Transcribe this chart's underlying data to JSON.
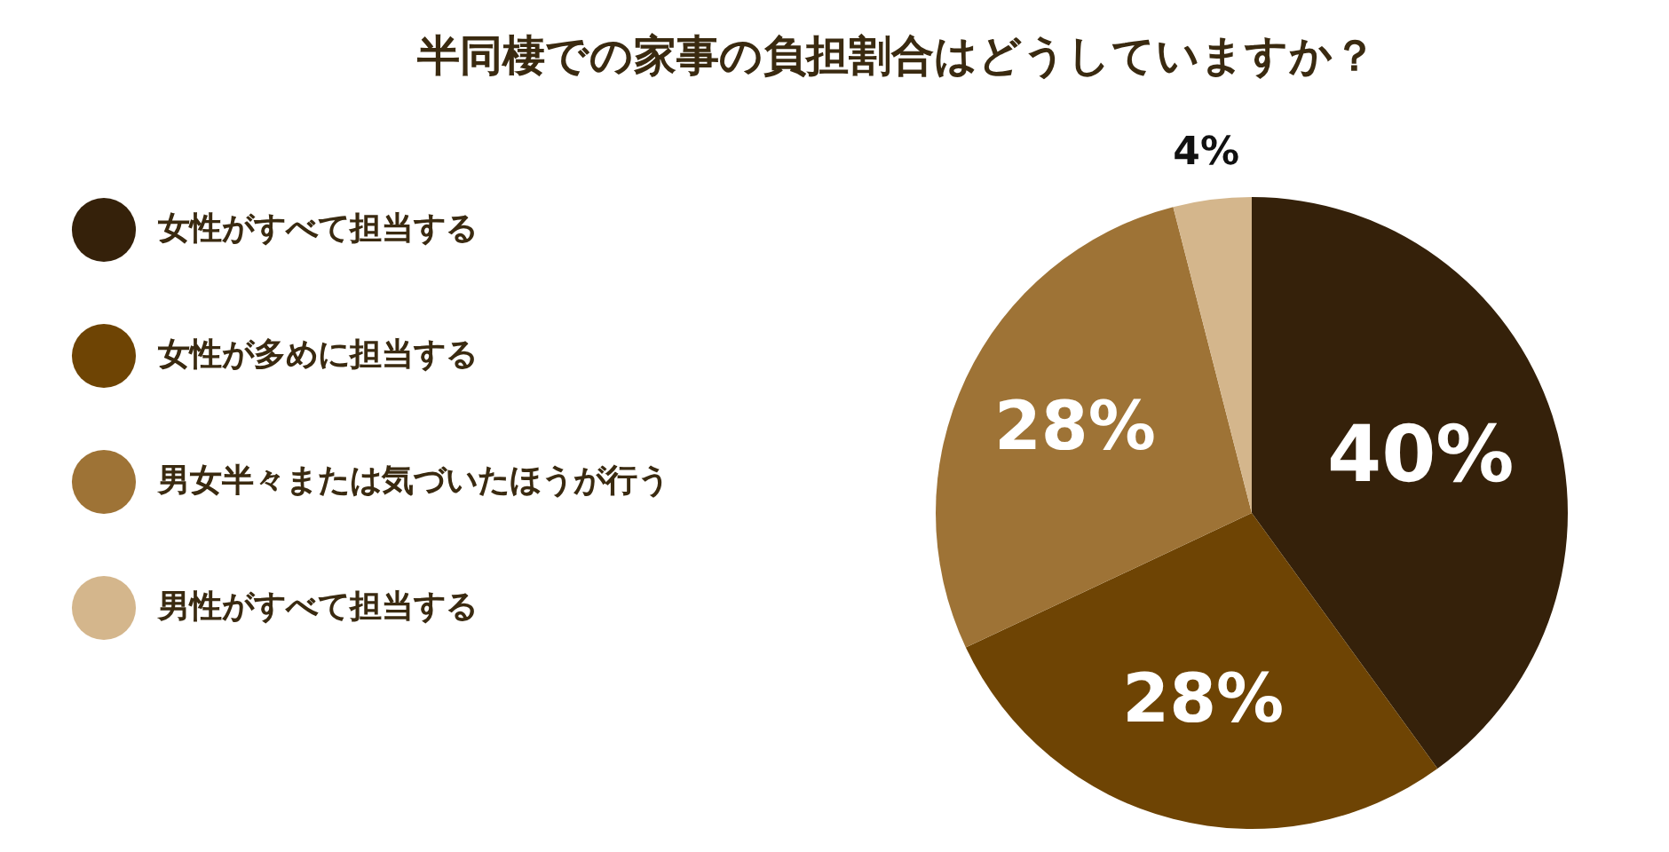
{
  "chart_data": {
    "type": "pie",
    "title": "半同棲での家事の負担割合はどうしていますか？",
    "categories": [
      "女性がすべて担当する",
      "女性が多めに担当する",
      "男女半々または気づいたほうが行う",
      "男性がすべて担当する"
    ],
    "values": [
      40,
      28,
      28,
      4
    ],
    "colors": [
      "#35210a",
      "#6e4404",
      "#9e7336",
      "#d4b68c"
    ],
    "value_labels": [
      "40%",
      "28%",
      "28%",
      "4%"
    ],
    "legend": "left"
  }
}
